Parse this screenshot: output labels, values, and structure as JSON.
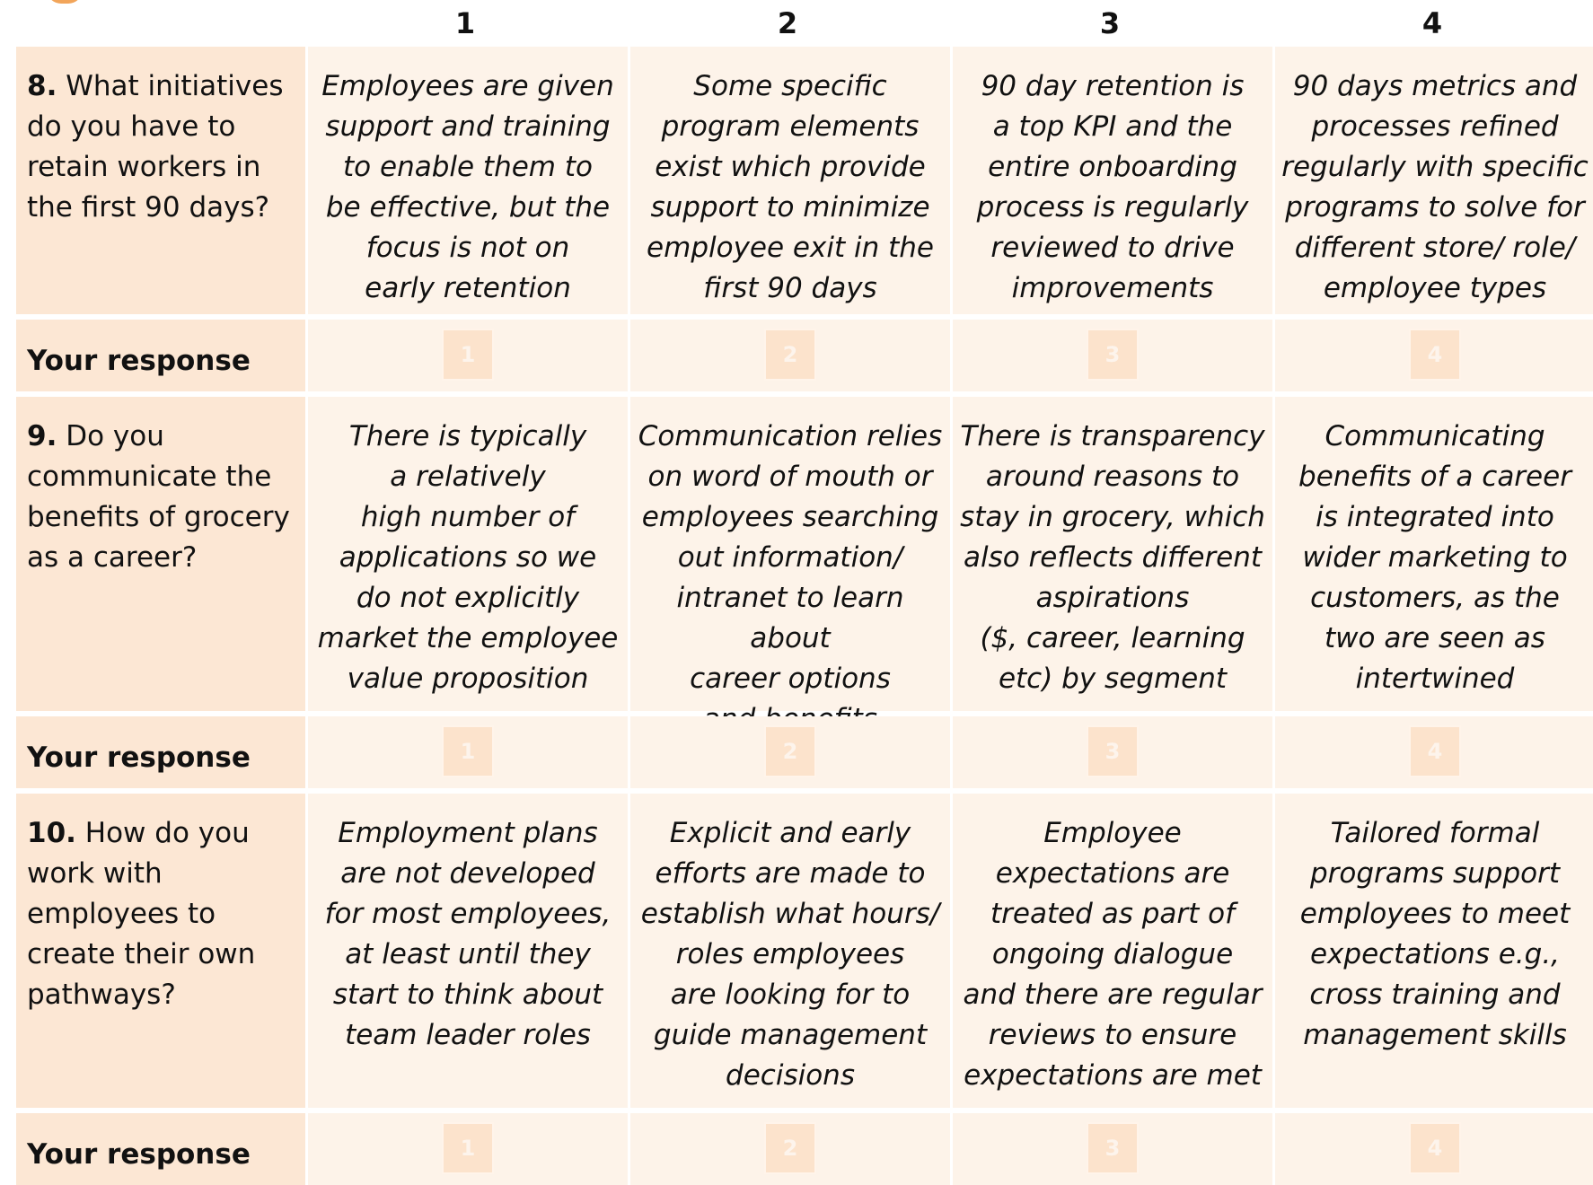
{
  "columns": [
    "1",
    "2",
    "3",
    "4"
  ],
  "response_label": "Your response",
  "questions": [
    {
      "number": "8.",
      "text": " What initiatives do you have to retain workers in the first 90 days?",
      "descriptions": [
        "Employees are given\nsupport and training\nto enable them to\nbe effective, but the\nfocus is not on\nearly retention",
        "Some specific\nprogram elements\nexist which provide\nsupport to minimize\nemployee exit in the\nfirst 90 days",
        "90 day retention is\na top KPI and the\nentire onboarding\nprocess is regularly\nreviewed to drive\nimprovements",
        "90 days metrics and\nprocesses refined\nregularly with specific\nprograms to solve for\ndifferent store/ role/\nemployee types"
      ]
    },
    {
      "number": "9.",
      "text": " Do you communicate the benefits of grocery as a career?",
      "descriptions": [
        "There is typically\na relatively\nhigh number of\napplications so we\ndo not explicitly\nmarket the employee\nvalue proposition",
        "Communication relies\non word of mouth or\nemployees searching\nout information/\nintranet to learn about\ncareer options\nand benefits",
        "There is transparency\naround reasons to\nstay in grocery, which\nalso reflects different\naspirations\n($, career, learning\netc) by segment",
        "Communicating\nbenefits of a career\nis integrated into\nwider marketing to\ncustomers, as the\ntwo are seen as\nintertwined"
      ]
    },
    {
      "number": "10.",
      "text": " How do you work with employees to create their own pathways?",
      "descriptions": [
        "Employment plans\nare not developed\nfor most employees,\nat least until they\nstart to think about\nteam leader roles",
        "Explicit and early\nefforts are made to\nestablish what hours/\nroles employees\nare looking for to\nguide management\ndecisions",
        "Employee\nexpectations are\ntreated as part of\nongoing dialogue\nand there are regular\nreviews to ensure\nexpectations are met",
        "Tailored formal\nprograms support\nemployees to meet\nexpectations e.g.,\ncross training and\nmanagement skills"
      ]
    }
  ],
  "colors": {
    "question_bg": "#fce7d4",
    "cell_bg": "#fdf3e9",
    "accent": "#f2a55a"
  }
}
